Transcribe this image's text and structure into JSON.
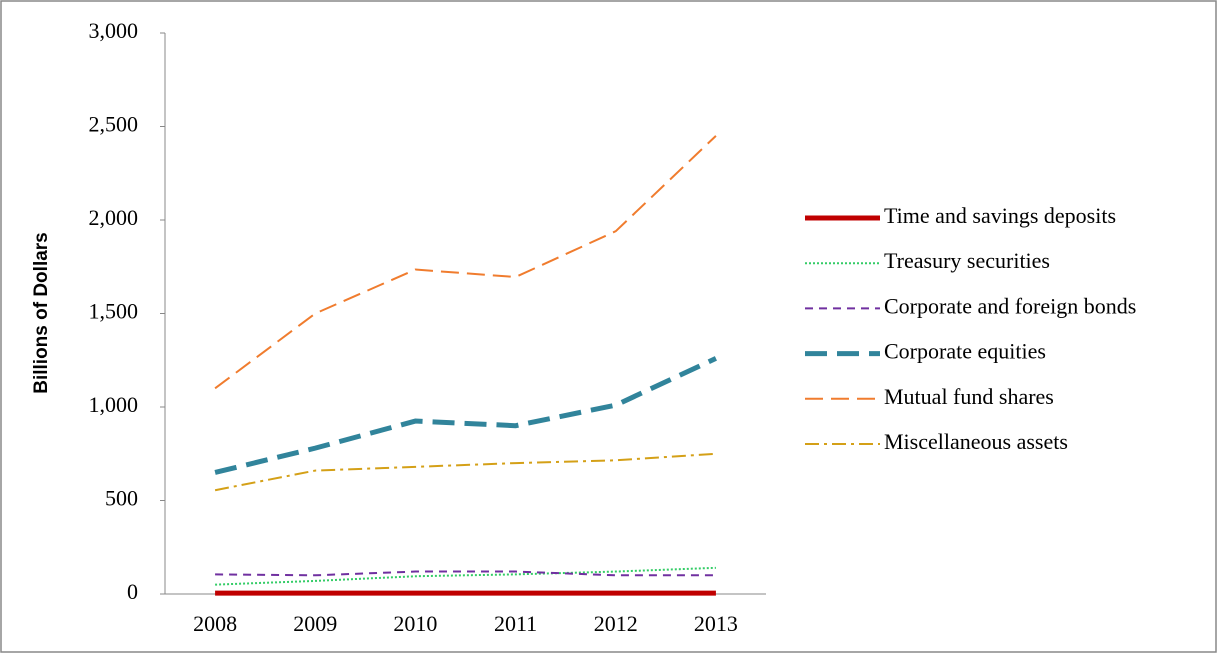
{
  "chart_data": {
    "type": "line",
    "y_label": "Billions of Dollars",
    "categories": [
      "2008",
      "2009",
      "2010",
      "2011",
      "2012",
      "2013"
    ],
    "ylim": [
      0,
      3000
    ],
    "yticks": [
      0,
      500,
      {
        "value": 1000,
        "label": "1,000"
      },
      {
        "value": 1500,
        "label": "1,500"
      },
      {
        "value": 2000,
        "label": "2,000"
      },
      {
        "value": 2500,
        "label": "2,500"
      },
      {
        "value": 3000,
        "label": "3,000"
      }
    ],
    "legend": "right",
    "series": [
      {
        "name": "Time and savings deposits",
        "color": "#c00000",
        "style": "solid",
        "width": 5,
        "values": [
          5,
          5,
          5,
          5,
          5,
          5
        ]
      },
      {
        "name": "Treasury securities",
        "color": "#33cc66",
        "style": "dotted",
        "width": 2,
        "values": [
          50,
          70,
          95,
          105,
          120,
          140
        ]
      },
      {
        "name": "Corporate and foreign bonds",
        "color": "#7030a0",
        "style": "dashed",
        "width": 2,
        "values": [
          105,
          100,
          120,
          120,
          100,
          100
        ]
      },
      {
        "name": "Corporate equities",
        "color": "#31849b",
        "style": "dashed",
        "width": 5,
        "values": [
          650,
          780,
          925,
          900,
          1010,
          1260
        ]
      },
      {
        "name": "Mutual fund shares",
        "color": "#f07c2e",
        "style": "longdash",
        "width": 2,
        "values": [
          1100,
          1500,
          1735,
          1695,
          1940,
          2450
        ]
      },
      {
        "name": "Miscellaneous assets",
        "color": "#d4a017",
        "style": "dashdot",
        "width": 2,
        "values": [
          555,
          660,
          680,
          700,
          715,
          750
        ]
      }
    ]
  }
}
